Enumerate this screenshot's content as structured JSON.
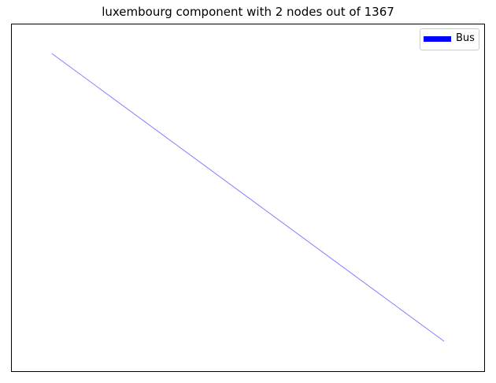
{
  "chart_data": {
    "type": "line",
    "title": "luxembourg component with 2 nodes out of 1367",
    "xlabel": "",
    "ylabel": "",
    "grid": false,
    "ticks_visible": false,
    "legend_position": "top-right",
    "series": [
      {
        "name": "Bus",
        "color": "#0000ff",
        "opacity": 0.5,
        "x": [
          0,
          1
        ],
        "y": [
          1,
          0
        ]
      }
    ]
  }
}
